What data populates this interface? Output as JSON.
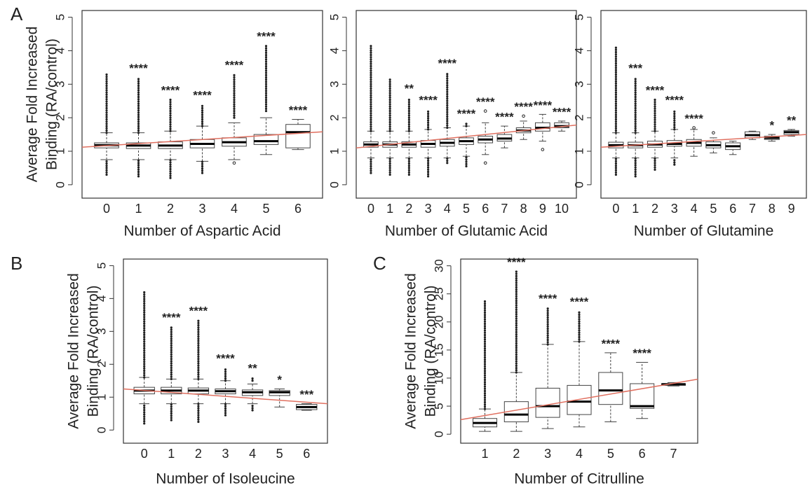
{
  "chart_data": [
    {
      "type": "box",
      "panel_label": "A",
      "ylabel": [
        "Average Fold Increased",
        "Binding (RA/control)"
      ],
      "xlabel": "Number of Aspartic Acid",
      "categories": [
        "0",
        "1",
        "2",
        "3",
        "4",
        "5",
        "6"
      ],
      "ylim": [
        -0.4,
        5.2
      ],
      "yticks": [
        0,
        1,
        2,
        3,
        4,
        5
      ],
      "lower_whisker": [
        0.75,
        0.75,
        0.75,
        0.7,
        0.75,
        0.9,
        1.05
      ],
      "q1": [
        1.1,
        1.08,
        1.08,
        1.1,
        1.15,
        1.2,
        1.1
      ],
      "median": [
        1.18,
        1.17,
        1.17,
        1.22,
        1.27,
        1.3,
        1.57
      ],
      "q3": [
        1.25,
        1.25,
        1.28,
        1.35,
        1.4,
        1.5,
        1.8
      ],
      "upper_whisker": [
        1.55,
        1.55,
        1.6,
        1.75,
        1.85,
        2.0,
        1.95
      ],
      "outliers_low": [
        [
          0.3,
          0.75
        ],
        [
          0.25,
          0.75
        ],
        [
          0.2,
          0.75
        ],
        [
          0.35,
          0.7
        ],
        [
          0.65,
          0.65
        ],
        null,
        null
      ],
      "outliers_high": [
        [
          1.55,
          3.35
        ],
        [
          1.55,
          3.2
        ],
        [
          1.6,
          2.55
        ],
        [
          1.75,
          2.4
        ],
        [
          2.0,
          3.3
        ],
        [
          2.2,
          4.15
        ],
        null
      ],
      "significance": [
        null,
        "****",
        "****",
        "****",
        "****",
        "****",
        "****"
      ],
      "trend": [
        1.12,
        1.58
      ]
    },
    {
      "type": "box",
      "xlabel": "Number of Glutamic Acid",
      "categories": [
        "0",
        "1",
        "2",
        "3",
        "4",
        "5",
        "6",
        "7",
        "8",
        "9",
        "10"
      ],
      "ylim": [
        -0.4,
        5.2
      ],
      "yticks": [
        0,
        1,
        2,
        3,
        4,
        5
      ],
      "lower_whisker": [
        0.8,
        0.8,
        0.8,
        0.8,
        0.8,
        0.85,
        0.9,
        1.1,
        1.35,
        1.3,
        1.6
      ],
      "q1": [
        1.12,
        1.12,
        1.12,
        1.12,
        1.15,
        1.2,
        1.25,
        1.3,
        1.55,
        1.6,
        1.7
      ],
      "median": [
        1.2,
        1.2,
        1.2,
        1.22,
        1.25,
        1.3,
        1.35,
        1.38,
        1.62,
        1.7,
        1.75
      ],
      "q3": [
        1.28,
        1.28,
        1.28,
        1.32,
        1.35,
        1.4,
        1.45,
        1.5,
        1.7,
        1.85,
        1.85
      ],
      "upper_whisker": [
        1.6,
        1.6,
        1.6,
        1.65,
        1.7,
        1.75,
        1.85,
        1.75,
        1.9,
        2.1,
        1.9
      ],
      "outliers_low": [
        [
          0.35,
          0.8
        ],
        [
          0.3,
          0.8
        ],
        [
          0.3,
          0.8
        ],
        [
          0.25,
          0.8
        ],
        [
          0.65,
          0.8
        ],
        [
          0.55,
          0.85
        ],
        [
          0.65,
          0.65
        ],
        null,
        null,
        [
          1.05,
          1.05
        ],
        null
      ],
      "outliers_high": [
        [
          1.6,
          4.2
        ],
        [
          1.6,
          3.2
        ],
        [
          1.6,
          2.6
        ],
        [
          1.65,
          2.25
        ],
        [
          1.7,
          3.35
        ],
        [
          1.75,
          1.85
        ],
        [
          2.2,
          2.2
        ],
        null,
        [
          2.05,
          2.05
        ],
        null,
        null
      ],
      "significance": [
        null,
        null,
        "**",
        "****",
        "****",
        "****",
        "****",
        "****",
        "****",
        "****",
        "****"
      ],
      "trend": [
        1.1,
        1.78
      ]
    },
    {
      "type": "box",
      "xlabel": "Number of Glutamine",
      "categories": [
        "0",
        "1",
        "2",
        "3",
        "4",
        "5",
        "6",
        "7",
        "8",
        "9"
      ],
      "ylim": [
        -0.4,
        5.2
      ],
      "yticks": [
        0,
        1,
        2,
        3,
        4,
        5
      ],
      "lower_whisker": [
        0.8,
        0.8,
        0.8,
        0.8,
        0.85,
        0.95,
        0.9,
        1.35,
        1.3,
        1.45
      ],
      "q1": [
        1.1,
        1.1,
        1.12,
        1.15,
        1.15,
        1.1,
        1.05,
        1.4,
        1.35,
        1.5
      ],
      "median": [
        1.18,
        1.18,
        1.2,
        1.22,
        1.25,
        1.18,
        1.15,
        1.48,
        1.4,
        1.57
      ],
      "q3": [
        1.27,
        1.27,
        1.3,
        1.32,
        1.35,
        1.28,
        1.25,
        1.58,
        1.45,
        1.62
      ],
      "upper_whisker": [
        1.55,
        1.55,
        1.6,
        1.65,
        1.65,
        1.4,
        1.3,
        1.6,
        1.5,
        1.65
      ],
      "outliers_low": [
        [
          0.3,
          0.8
        ],
        [
          0.25,
          0.8
        ],
        [
          0.45,
          0.8
        ],
        [
          0.6,
          0.8
        ],
        null,
        null,
        null,
        null,
        null,
        null
      ],
      "outliers_high": [
        [
          1.55,
          4.15
        ],
        [
          1.55,
          3.2
        ],
        [
          1.6,
          2.55
        ],
        [
          1.65,
          2.25
        ],
        [
          1.7,
          1.7
        ],
        [
          1.55,
          1.55
        ],
        null,
        null,
        null,
        null
      ],
      "significance": [
        null,
        "***",
        "****",
        "****",
        "****",
        null,
        null,
        null,
        "*",
        "**"
      ],
      "trend": [
        1.12,
        1.5
      ]
    },
    {
      "type": "box",
      "panel_label": "B",
      "ylabel": [
        "Average Fold Increased",
        "Binding (RA/control)"
      ],
      "xlabel": "Number of Isoleucine",
      "categories": [
        "0",
        "1",
        "2",
        "3",
        "4",
        "5",
        "6"
      ],
      "ylim": [
        -0.4,
        5.2
      ],
      "yticks": [
        0,
        1,
        2,
        3,
        4,
        5
      ],
      "lower_whisker": [
        0.8,
        0.8,
        0.8,
        0.8,
        0.8,
        0.7,
        0.6
      ],
      "q1": [
        1.1,
        1.1,
        1.1,
        1.1,
        1.05,
        1.05,
        0.62
      ],
      "median": [
        1.2,
        1.2,
        1.2,
        1.18,
        1.15,
        1.15,
        0.7
      ],
      "q3": [
        1.3,
        1.3,
        1.28,
        1.25,
        1.22,
        1.2,
        0.78
      ],
      "upper_whisker": [
        1.6,
        1.55,
        1.55,
        1.5,
        1.4,
        1.25,
        0.8
      ],
      "outliers_low": [
        [
          0.2,
          0.8
        ],
        [
          0.3,
          0.8
        ],
        [
          0.25,
          0.8
        ],
        [
          0.45,
          0.8
        ],
        [
          0.6,
          0.8
        ],
        null,
        null
      ],
      "outliers_high": [
        [
          1.6,
          4.2
        ],
        [
          1.55,
          3.15
        ],
        [
          1.55,
          3.35
        ],
        [
          1.5,
          1.9
        ],
        [
          1.5,
          1.6
        ],
        null,
        null
      ],
      "significance": [
        null,
        "****",
        "****",
        "****",
        "**",
        "*",
        "***"
      ],
      "trend": [
        1.25,
        0.8
      ]
    },
    {
      "type": "box",
      "panel_label": "C",
      "ylabel": [
        "Average Fold Increased",
        "Binding (RA/control)"
      ],
      "xlabel": "Number of Citrulline",
      "categories": [
        "1",
        "2",
        "3",
        "4",
        "5",
        "6",
        "7"
      ],
      "ylim": [
        -1.6,
        31.2
      ],
      "yticks": [
        0,
        5,
        10,
        15,
        20,
        25,
        30
      ],
      "lower_whisker": [
        0.5,
        0.5,
        1,
        1.3,
        2.2,
        2.8,
        8.6
      ],
      "q1": [
        1.3,
        2.2,
        3,
        3.5,
        5.3,
        4.6,
        8.7
      ],
      "median": [
        2,
        3.5,
        5,
        5.8,
        7.8,
        5,
        8.9
      ],
      "q3": [
        2.8,
        5.8,
        8.2,
        8.7,
        11,
        9,
        9
      ],
      "upper_whisker": [
        4.5,
        11,
        16,
        16.5,
        14.5,
        12.8,
        9.2
      ],
      "outliers_low": [
        null,
        null,
        null,
        null,
        null,
        null,
        null
      ],
      "outliers_high": [
        [
          4.5,
          24
        ],
        [
          11,
          29
        ],
        [
          16,
          22.5
        ],
        [
          16.5,
          22
        ],
        null,
        null,
        null
      ],
      "significance": [
        null,
        "****",
        "****",
        "****",
        "****",
        "****",
        null
      ],
      "trend": [
        2.6,
        9.8
      ]
    }
  ]
}
